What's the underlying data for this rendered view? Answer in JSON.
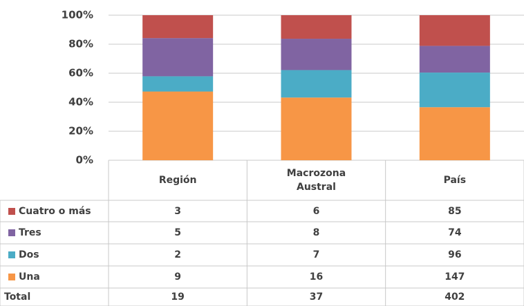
{
  "chart_data": {
    "type": "stacked_bar_100",
    "categories": [
      "Región",
      "Macrozona Austral",
      "País"
    ],
    "series": [
      {
        "name": "Cuatro o más",
        "color": "#c0504d",
        "values": [
          3,
          6,
          85
        ]
      },
      {
        "name": "Tres",
        "color": "#8064a2",
        "values": [
          5,
          8,
          74
        ]
      },
      {
        "name": "Dos",
        "color": "#4bacc6",
        "values": [
          2,
          7,
          96
        ]
      },
      {
        "name": "Una",
        "color": "#f79646",
        "values": [
          9,
          16,
          147
        ]
      }
    ],
    "totals_label": "Total",
    "totals": [
      19,
      37,
      402
    ],
    "ylim": [
      0,
      100
    ],
    "yticks": [
      {
        "value": 0,
        "label": "0%"
      },
      {
        "value": 20,
        "label": "20%"
      },
      {
        "value": 40,
        "label": "40%"
      },
      {
        "value": 60,
        "label": "60%"
      },
      {
        "value": 80,
        "label": "80%"
      },
      {
        "value": 100,
        "label": "100%"
      }
    ],
    "grid": true
  }
}
